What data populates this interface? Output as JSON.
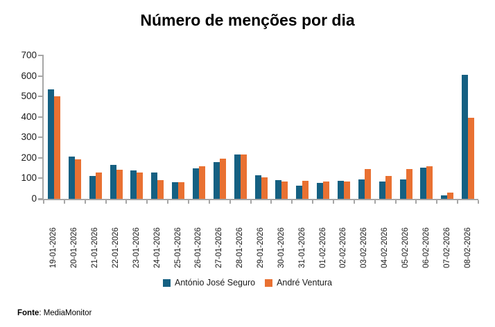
{
  "chart_data": {
    "type": "bar",
    "title": "Número de menções por dia",
    "categories": [
      "19-01-2026",
      "20-01-2026",
      "21-01-2026",
      "22-01-2026",
      "23-01-2026",
      "24-01-2026",
      "25-01-2026",
      "26-01-2026",
      "27-01-2026",
      "28-01-2026",
      "29-01-2026",
      "30-01-2026",
      "31-01-2026",
      "01-02-2026",
      "02-02-2026",
      "03-02-2026",
      "04-02-2026",
      "05-02-2026",
      "06-02-2026",
      "07-02-2026",
      "08-02-2026"
    ],
    "series": [
      {
        "name": "António José Seguro",
        "color": "#156082",
        "values": [
          535,
          207,
          110,
          165,
          140,
          127,
          82,
          150,
          180,
          217,
          115,
          90,
          64,
          79,
          89,
          96,
          83,
          93,
          153,
          17,
          605
        ]
      },
      {
        "name": "André Ventura",
        "color": "#E97132",
        "values": [
          500,
          193,
          130,
          143,
          130,
          92,
          81,
          160,
          195,
          215,
          105,
          86,
          88,
          85,
          85,
          146,
          113,
          147,
          158,
          30,
          397
        ]
      }
    ],
    "ylim": [
      0,
      700
    ],
    "yticks": [
      0,
      100,
      200,
      300,
      400,
      500,
      600,
      700
    ],
    "grid": false,
    "legend_position": "bottom",
    "axis_color": "#A6A6A6"
  },
  "footer": {
    "label": "Fonte",
    "text": ": MediaMonitor"
  }
}
